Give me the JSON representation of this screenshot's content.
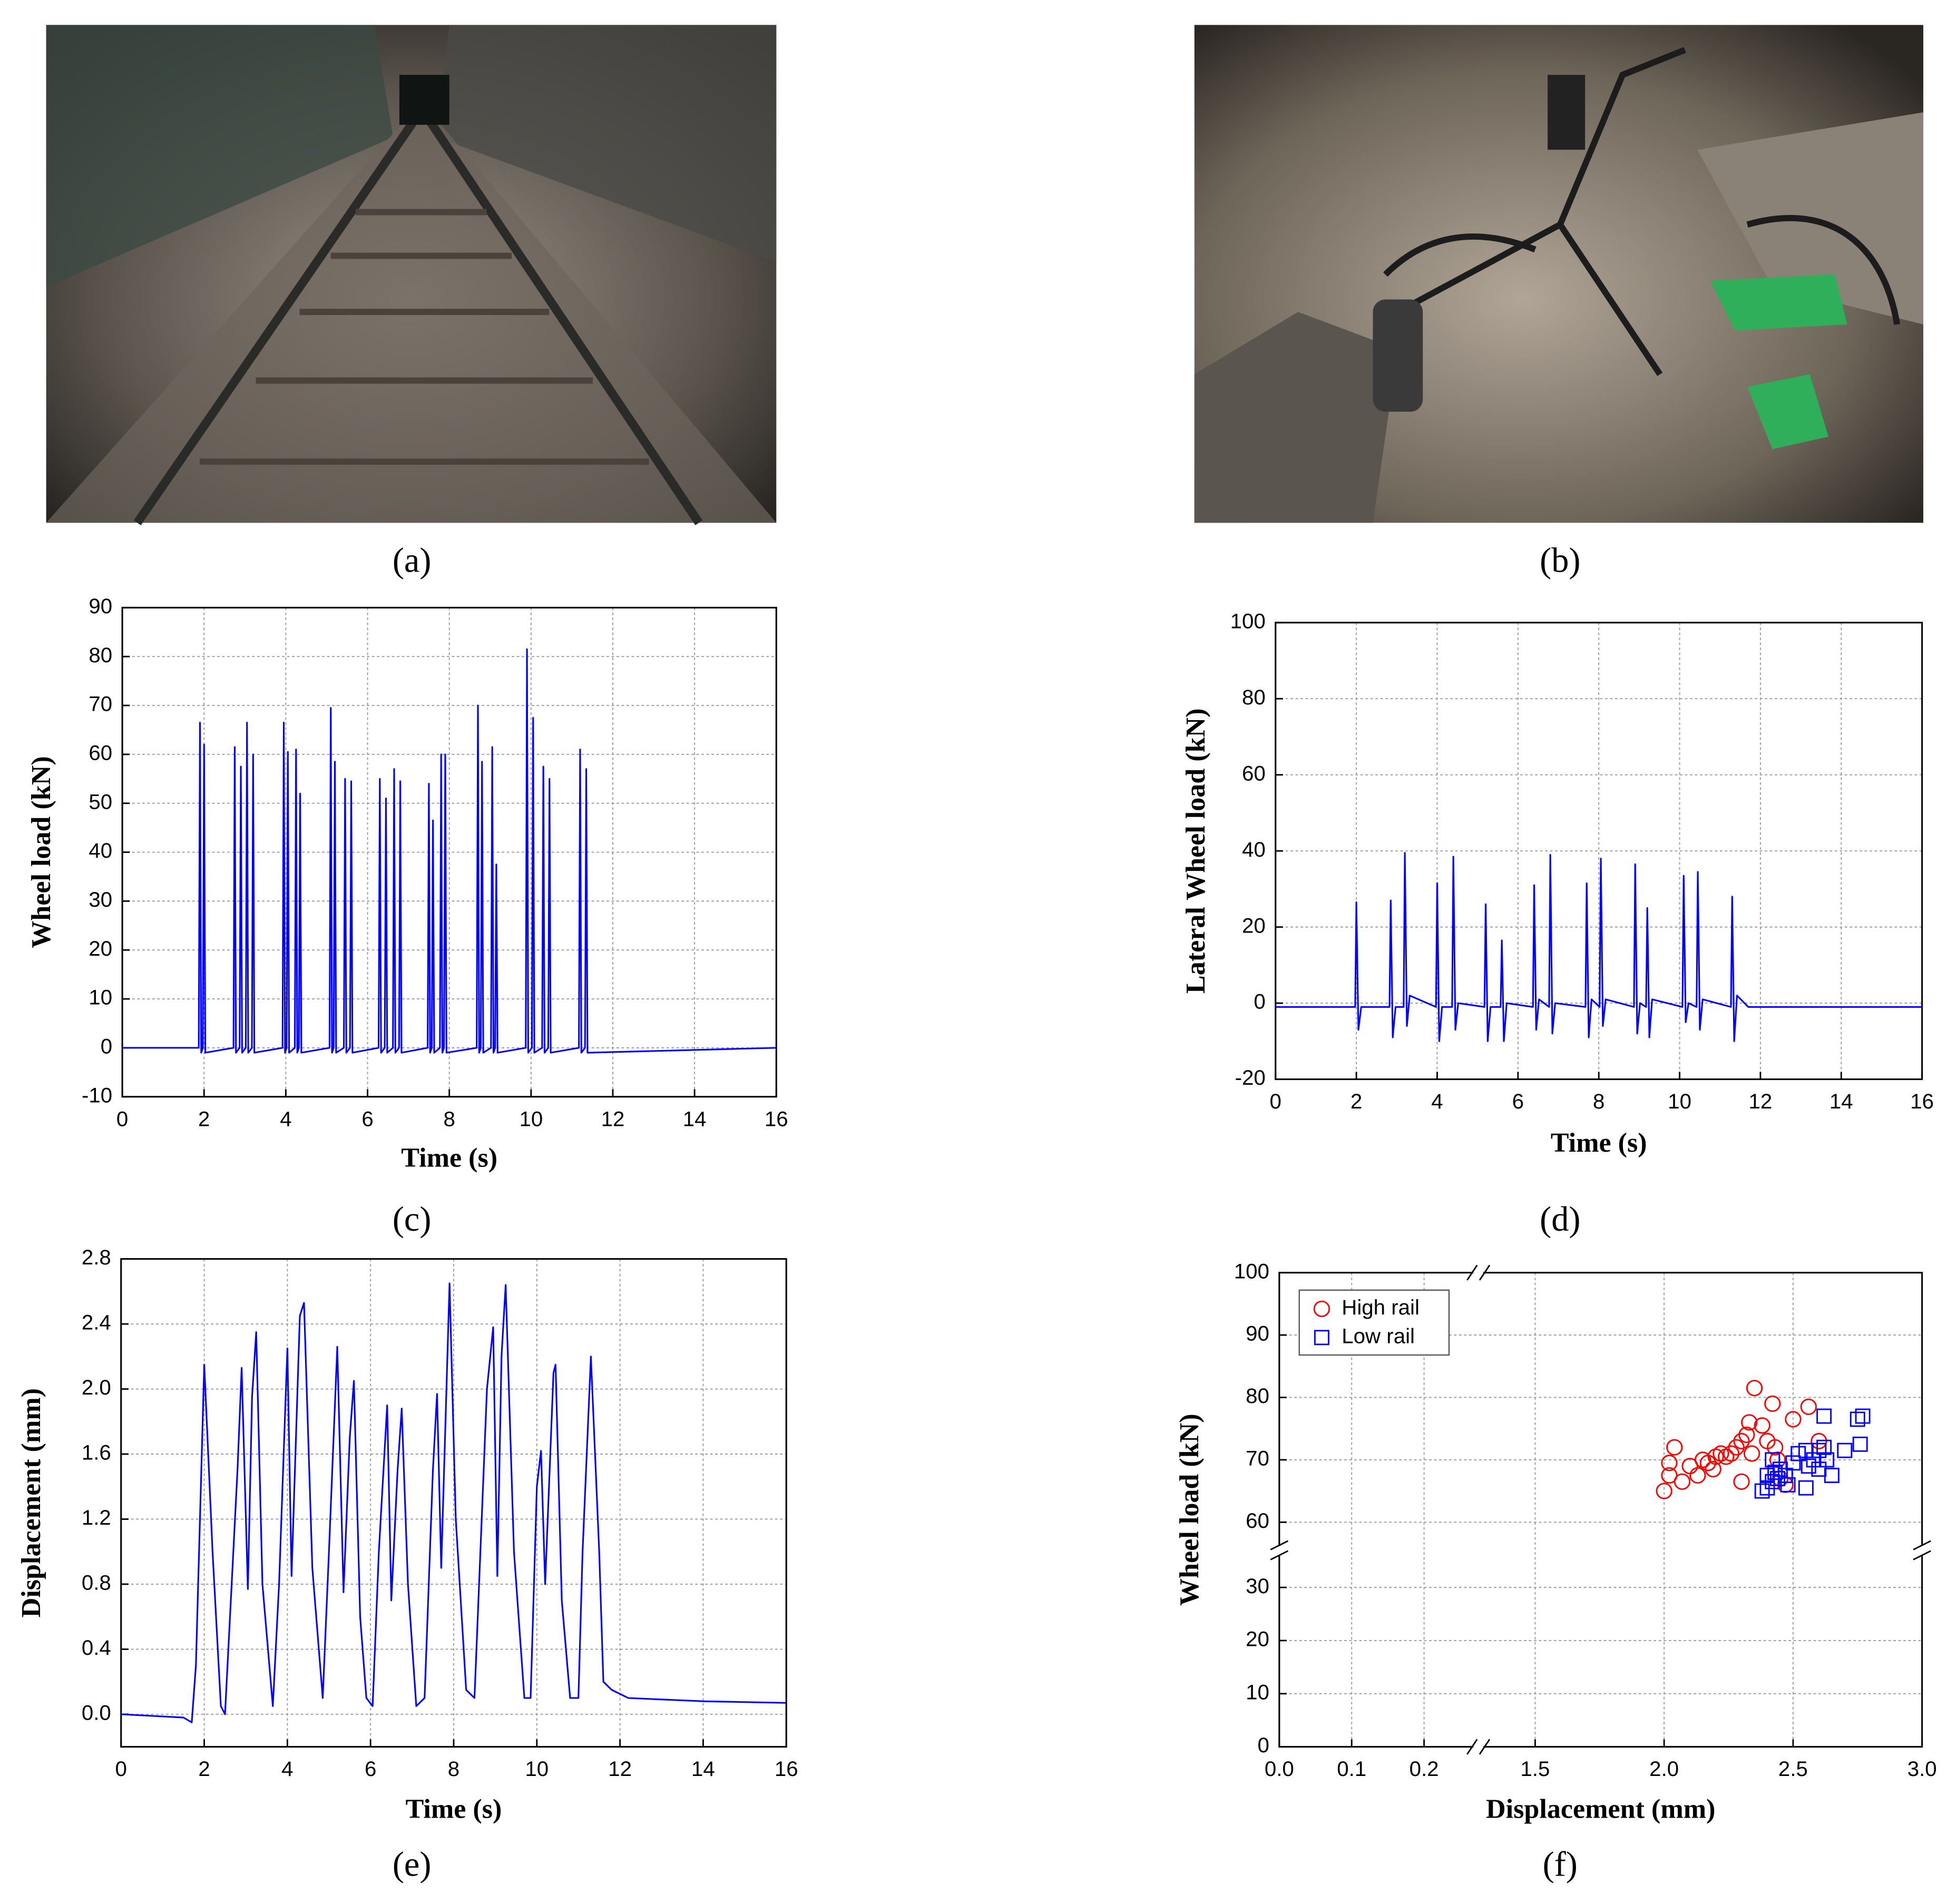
{
  "photos": [
    {
      "caption": "(a)"
    },
    {
      "caption": "(b)"
    }
  ],
  "chart_data": [
    {
      "type": "line",
      "caption": "(c)",
      "x_label": "Time (s)",
      "y_label": "Wheel load (kN)",
      "color": "#0000ff",
      "grid": true,
      "xlim": [
        0,
        16
      ],
      "xticks": [
        0,
        2,
        4,
        6,
        8,
        10,
        12,
        14,
        16
      ],
      "ylim": [
        -10,
        90
      ],
      "yticks": [
        -10,
        0,
        10,
        20,
        30,
        40,
        50,
        60,
        70,
        80,
        90
      ],
      "x": [
        0,
        1.87,
        1.9,
        1.93,
        1.97,
        2.0,
        2.03,
        2.72,
        2.75,
        2.78,
        2.87,
        2.9,
        2.93,
        3.02,
        3.05,
        3.08,
        3.17,
        3.2,
        3.23,
        3.92,
        3.95,
        3.98,
        4.02,
        4.05,
        4.08,
        4.22,
        4.25,
        4.28,
        4.32,
        4.35,
        4.38,
        5.07,
        5.1,
        5.13,
        5.17,
        5.2,
        5.23,
        5.42,
        5.45,
        5.48,
        5.57,
        5.6,
        5.63,
        6.27,
        6.3,
        6.33,
        6.42,
        6.45,
        6.48,
        6.62,
        6.65,
        6.68,
        6.77,
        6.8,
        6.83,
        7.47,
        7.5,
        7.53,
        7.57,
        7.6,
        7.63,
        7.77,
        7.8,
        7.83,
        7.87,
        7.9,
        7.93,
        8.67,
        8.7,
        8.73,
        8.77,
        8.8,
        8.83,
        9.02,
        9.05,
        9.08,
        9.12,
        9.15,
        9.18,
        9.87,
        9.9,
        9.93,
        10.02,
        10.05,
        10.08,
        10.27,
        10.3,
        10.33,
        10.42,
        10.45,
        10.48,
        11.17,
        11.2,
        11.23,
        11.32,
        11.35,
        11.38,
        16
      ],
      "values": [
        0,
        0,
        66.5,
        -1,
        0,
        62,
        -1,
        0,
        61.5,
        -1,
        0,
        57.5,
        -1,
        0,
        66.5,
        -1,
        0,
        60,
        -1,
        0,
        66.5,
        -1,
        0,
        60.5,
        -1,
        0,
        61,
        -1,
        0,
        52,
        -1,
        0,
        69.5,
        -1,
        0,
        58.5,
        -1,
        0,
        55,
        -1,
        0,
        54.5,
        -1,
        0,
        55,
        -1,
        0,
        51,
        -1,
        0,
        57,
        -1,
        0,
        54.5,
        -1,
        0,
        54,
        -1,
        0,
        46.5,
        -1,
        0,
        60,
        -1,
        0,
        60,
        -1,
        0,
        70,
        -1,
        0,
        58.5,
        -1,
        0,
        61.5,
        -1,
        0,
        37.5,
        -1,
        0,
        81.5,
        -1,
        0,
        67.5,
        -1,
        0,
        57.5,
        -1,
        0,
        55,
        -1,
        0,
        61,
        -1,
        0,
        57,
        -1,
        0
      ]
    },
    {
      "type": "line",
      "caption": "(d)",
      "x_label": "Time (s)",
      "y_label": "Lateral Wheel load (kN)",
      "color": "#0000ff",
      "grid": true,
      "xlim": [
        0,
        16
      ],
      "xticks": [
        0,
        2,
        4,
        6,
        8,
        10,
        12,
        14,
        16
      ],
      "ylim": [
        -20,
        100
      ],
      "yticks": [
        -20,
        0,
        20,
        40,
        60,
        80,
        100
      ],
      "x": [
        0,
        1.97,
        2.0,
        2.05,
        2.12,
        2.82,
        2.85,
        2.9,
        2.97,
        3.17,
        3.2,
        3.25,
        3.32,
        3.97,
        4.0,
        4.05,
        4.12,
        4.37,
        4.4,
        4.45,
        4.52,
        5.17,
        5.2,
        5.25,
        5.32,
        5.57,
        5.6,
        5.65,
        5.72,
        6.37,
        6.4,
        6.45,
        6.52,
        6.77,
        6.8,
        6.85,
        6.92,
        7.67,
        7.7,
        7.75,
        7.82,
        8.02,
        8.05,
        8.1,
        8.17,
        8.87,
        8.9,
        8.95,
        9.02,
        9.17,
        9.2,
        9.25,
        9.32,
        10.07,
        10.1,
        10.15,
        10.22,
        10.42,
        10.45,
        10.5,
        10.57,
        11.27,
        11.3,
        11.35,
        11.42,
        11.7,
        16
      ],
      "values": [
        -1,
        -1,
        26.5,
        -7,
        -1,
        -1,
        27,
        -9,
        -1,
        -1,
        39.5,
        -6,
        2,
        -1,
        31.5,
        -10,
        -1,
        -1,
        38.5,
        -7,
        0,
        -1,
        26,
        -10,
        -1,
        -1,
        16.5,
        -10,
        0,
        -1,
        31,
        -7,
        1,
        -1,
        39,
        -8,
        0,
        -1,
        31.5,
        -9,
        1,
        -1,
        38,
        -6,
        1,
        -1,
        36.5,
        -8,
        0,
        -1,
        25,
        -9,
        1,
        -1,
        33.5,
        -5,
        0,
        -1,
        34.5,
        -7,
        1,
        -1,
        28,
        -10,
        2,
        -1,
        -1
      ]
    },
    {
      "type": "line",
      "caption": "(e)",
      "x_label": "Time (s)",
      "y_label": "Displacement (mm)",
      "color": "#0000ff",
      "grid": true,
      "xlim": [
        0,
        16
      ],
      "xticks": [
        0,
        2,
        4,
        6,
        8,
        10,
        12,
        14,
        16
      ],
      "ylim": [
        -0.2,
        2.8
      ],
      "yticks": [
        {
          "value": 0,
          "label": "0.0"
        },
        0.4,
        0.8,
        1.2,
        1.6,
        {
          "value": 2,
          "label": "2.0"
        },
        2.4,
        2.8
      ],
      "x": [
        0,
        1.5,
        1.7,
        1.8,
        2.0,
        2.2,
        2.4,
        2.5,
        2.8,
        2.9,
        3.05,
        3.15,
        3.25,
        3.4,
        3.65,
        3.8,
        4.0,
        4.1,
        4.3,
        4.4,
        4.6,
        4.85,
        5.0,
        5.2,
        5.35,
        5.5,
        5.6,
        5.75,
        5.9,
        6.05,
        6.2,
        6.4,
        6.5,
        6.65,
        6.75,
        6.9,
        7.1,
        7.3,
        7.5,
        7.6,
        7.7,
        7.9,
        8.05,
        8.3,
        8.5,
        8.8,
        8.95,
        9.05,
        9.15,
        9.25,
        9.45,
        9.7,
        9.85,
        10.0,
        10.1,
        10.2,
        10.4,
        10.45,
        10.6,
        10.8,
        11.0,
        11.1,
        11.3,
        11.5,
        11.6,
        11.8,
        12.2,
        14,
        16
      ],
      "values": [
        0,
        -0.02,
        -0.05,
        0.3,
        2.15,
        1.0,
        0.05,
        0,
        1.5,
        2.13,
        0.77,
        1.95,
        2.35,
        0.8,
        0.05,
        0.8,
        2.25,
        0.85,
        2.45,
        2.53,
        0.9,
        0.1,
        1.0,
        2.26,
        0.75,
        1.7,
        2.05,
        0.6,
        0.1,
        0.05,
        1.0,
        1.9,
        0.7,
        1.5,
        1.88,
        0.8,
        0.05,
        0.1,
        1.5,
        1.97,
        0.9,
        2.65,
        1.2,
        0.15,
        0.1,
        2.0,
        2.38,
        0.85,
        2.2,
        2.64,
        1.0,
        0.1,
        0.1,
        1.4,
        1.62,
        0.8,
        2.1,
        2.15,
        0.7,
        0.1,
        0.1,
        1.0,
        2.2,
        1.0,
        0.2,
        0.15,
        0.1,
        0.08,
        0.07
      ]
    },
    {
      "type": "scatter",
      "caption": "(f)",
      "x_label": "Displacement (mm)",
      "y_label": "Wheel load (kN)",
      "grid": true,
      "legend": "upper left",
      "xlim": [
        0,
        3
      ],
      "xbreak": [
        0.25,
        1.35
      ],
      "xticks": [
        {
          "value": 0,
          "label": "0.0"
        },
        0.1,
        0.2,
        1.5,
        {
          "value": 2,
          "label": "2.0"
        },
        2.5,
        {
          "value": 3,
          "label": "3.0"
        }
      ],
      "ylim": [
        0,
        100
      ],
      "ybreak": [
        35,
        57
      ],
      "yticks": [
        0,
        10,
        20,
        30,
        60,
        70,
        80,
        90,
        100
      ],
      "series": [
        {
          "name": "High rail",
          "color": "#ff0000",
          "marker": "circle",
          "x": [
            2.0,
            2.02,
            2.02,
            2.04,
            2.07,
            2.1,
            2.13,
            2.15,
            2.17,
            2.19,
            2.2,
            2.22,
            2.24,
            2.26,
            2.28,
            2.3,
            2.32,
            2.33,
            2.35,
            2.34,
            2.38,
            2.4,
            2.42,
            2.43,
            2.44,
            2.3,
            2.45,
            2.5,
            2.56,
            2.6,
            2.47
          ],
          "values": [
            65,
            67.5,
            69.5,
            72,
            66.5,
            69,
            67.5,
            70,
            69.5,
            68.5,
            70.5,
            71,
            70.5,
            71,
            72,
            73,
            74,
            76,
            81.5,
            71,
            75.5,
            73,
            79,
            72,
            70,
            66.5,
            67,
            76.5,
            78.5,
            73,
            66
          ]
        },
        {
          "name": "Low rail",
          "color": "#0000ff",
          "marker": "square",
          "x": [
            2.38,
            2.4,
            2.42,
            2.43,
            2.44,
            2.45,
            2.47,
            2.42,
            2.5,
            2.52,
            2.55,
            2.55,
            2.56,
            2.58,
            2.6,
            2.6,
            2.62,
            2.62,
            2.63,
            2.65,
            2.7,
            2.75,
            2.77,
            2.76,
            2.48,
            2.4
          ],
          "values": [
            65,
            65.5,
            66.5,
            68,
            67,
            68.5,
            67.5,
            70,
            69.5,
            71,
            71.5,
            65.5,
            69,
            70,
            71.5,
            68.5,
            72,
            77,
            70,
            67.5,
            71.5,
            76.5,
            77,
            72.5,
            66,
            67.5
          ]
        }
      ]
    }
  ]
}
